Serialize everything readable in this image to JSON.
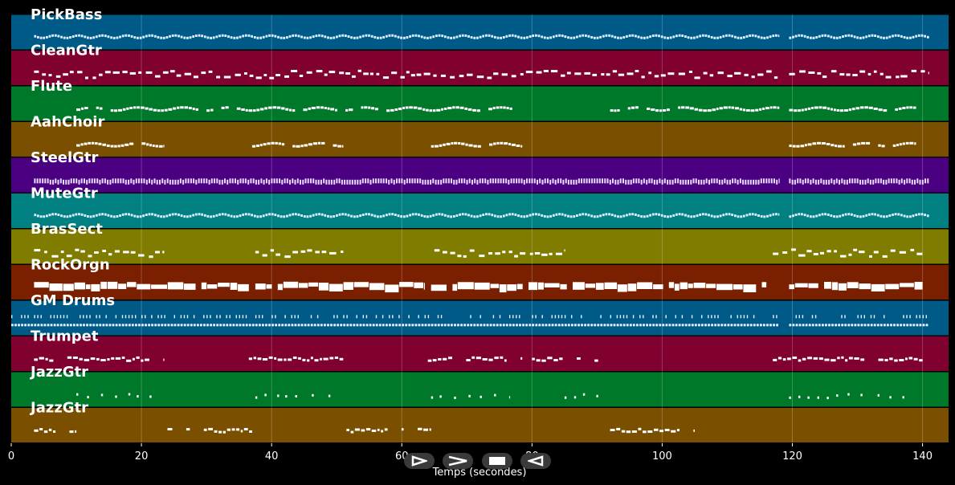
{
  "controls": {
    "play": "play-icon",
    "forward": "forward-icon",
    "stop": "stop-icon",
    "back": "back-icon"
  },
  "chart_data": {
    "type": "piano-roll",
    "xlabel": "Temps (secondes)",
    "xlim": [
      0,
      144
    ],
    "xticks": [
      0,
      20,
      40,
      60,
      80,
      100,
      120,
      140
    ],
    "grid": true,
    "background": "#000000",
    "tracks": [
      {
        "name": "PickBass",
        "color": "#005a87",
        "style": "line",
        "segments": [
          [
            3.5,
            118
          ],
          [
            119.5,
            141
          ]
        ]
      },
      {
        "name": "CleanGtr",
        "color": "#800030",
        "style": "chords",
        "segments": [
          [
            3.5,
            118
          ],
          [
            119.5,
            141
          ]
        ]
      },
      {
        "name": "Flute",
        "color": "#00782a",
        "style": "melody",
        "segments": [
          [
            10,
            77
          ],
          [
            92,
            118
          ],
          [
            119.5,
            139
          ]
        ]
      },
      {
        "name": "AahChoir",
        "color": "#7a5000",
        "style": "melody",
        "segments": [
          [
            10,
            23.5
          ],
          [
            37,
            51
          ],
          [
            64.5,
            78.5
          ],
          [
            119.5,
            139
          ]
        ]
      },
      {
        "name": "SteelGtr",
        "color": "#4b0082",
        "style": "dense",
        "segments": [
          [
            3.5,
            118
          ],
          [
            119.5,
            141
          ]
        ]
      },
      {
        "name": "MuteGtr",
        "color": "#008080",
        "style": "line",
        "segments": [
          [
            3.5,
            118
          ],
          [
            119.5,
            141
          ]
        ]
      },
      {
        "name": "BrasSect",
        "color": "#807c00",
        "style": "chords",
        "segments": [
          [
            3.5,
            23.5
          ],
          [
            37.5,
            51
          ],
          [
            65,
            85
          ],
          [
            117,
            140
          ]
        ]
      },
      {
        "name": "RockOrgn",
        "color": "#7a2000",
        "style": "block",
        "segments": [
          [
            3.5,
            36.5
          ],
          [
            37.5,
            63.5
          ],
          [
            64.5,
            116
          ],
          [
            119.5,
            140
          ]
        ]
      },
      {
        "name": "GM Drums",
        "color": "#005a87",
        "style": "drums",
        "segments": [
          [
            0,
            118
          ],
          [
            119.5,
            141
          ]
        ]
      },
      {
        "name": "Trumpet",
        "color": "#800030",
        "style": "phrase",
        "segments": [
          [
            3.5,
            23.5
          ],
          [
            36.5,
            51
          ],
          [
            64,
            78.5
          ],
          [
            80,
            92
          ],
          [
            117,
            140
          ]
        ]
      },
      {
        "name": "JazzGtr",
        "color": "#00782a",
        "style": "sparse",
        "segments": [
          [
            10,
            22.5
          ],
          [
            37.5,
            49.5
          ],
          [
            64.5,
            76.5
          ],
          [
            85,
            91.5
          ],
          [
            119.5,
            138.5
          ]
        ]
      },
      {
        "name": "JazzGtr",
        "color": "#7a5000",
        "style": "phrase",
        "segments": [
          [
            3.5,
            10
          ],
          [
            24,
            37
          ],
          [
            51.5,
            64.5
          ],
          [
            92,
            105
          ]
        ]
      }
    ]
  }
}
